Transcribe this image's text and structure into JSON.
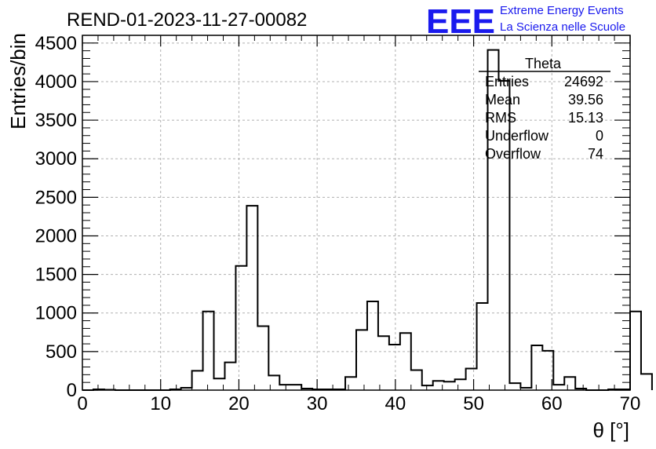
{
  "header": {
    "title": "REND-01-2023-11-27-00082",
    "logo_text": "EEE",
    "logo_line1": "Extreme Energy Events",
    "logo_line2": "La Scienza nelle Scuole"
  },
  "stats_box": {
    "name": "Theta",
    "rows": [
      {
        "label": "Entries",
        "value": "24692"
      },
      {
        "label": "Mean",
        "value": "39.56"
      },
      {
        "label": "RMS",
        "value": "15.13"
      },
      {
        "label": "Underflow",
        "value": "0"
      },
      {
        "label": "Overflow",
        "value": "74"
      }
    ]
  },
  "chart_data": {
    "type": "histogram",
    "title": "REND-01-2023-11-27-00082",
    "xlabel": "θ [°]",
    "ylabel": "Entries/bin",
    "xlim": [
      0,
      70
    ],
    "ylim": [
      0,
      4600
    ],
    "x_ticks": [
      0,
      10,
      20,
      30,
      40,
      50,
      60,
      70
    ],
    "y_ticks": [
      0,
      500,
      1000,
      1500,
      2000,
      2500,
      3000,
      3500,
      4000,
      4500
    ],
    "grid": true,
    "bin_width": 1.4,
    "bin_edges_start": 0,
    "values": [
      0,
      10,
      5,
      0,
      0,
      0,
      0,
      0,
      10,
      30,
      250,
      1020,
      150,
      360,
      1610,
      2390,
      830,
      190,
      70,
      70,
      20,
      10,
      10,
      10,
      170,
      780,
      1150,
      700,
      590,
      740,
      260,
      60,
      120,
      110,
      140,
      280,
      1130,
      4410,
      4010,
      90,
      30,
      580,
      510,
      70,
      170,
      20,
      0,
      0,
      10,
      10,
      1020,
      210
    ],
    "line_color": "#000000"
  }
}
